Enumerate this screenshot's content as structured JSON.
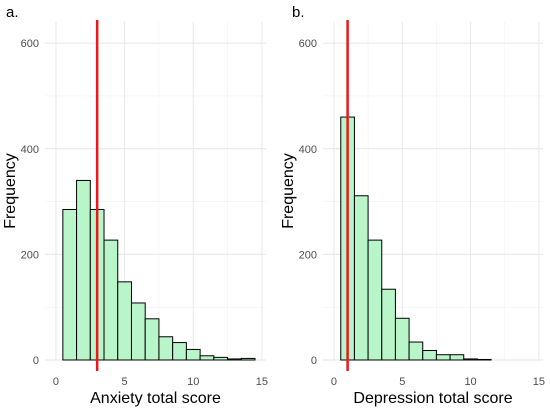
{
  "chart_data": [
    {
      "panel": "a.",
      "type": "bar",
      "xlabel": "Anxiety total score",
      "ylabel": "Frequency",
      "xlim": [
        -0.8,
        15.3
      ],
      "ylim": [
        0,
        640
      ],
      "xticks": [
        "0",
        "5",
        "10",
        "15"
      ],
      "yticks": [
        "0",
        "200",
        "400",
        "600"
      ],
      "bin_width": 1,
      "bins": [
        {
          "center": 1,
          "value": 285
        },
        {
          "center": 2,
          "value": 340
        },
        {
          "center": 3,
          "value": 285
        },
        {
          "center": 4,
          "value": 227
        },
        {
          "center": 5,
          "value": 148
        },
        {
          "center": 6,
          "value": 108
        },
        {
          "center": 7,
          "value": 78
        },
        {
          "center": 8,
          "value": 44
        },
        {
          "center": 9,
          "value": 33
        },
        {
          "center": 10,
          "value": 20
        },
        {
          "center": 11,
          "value": 8
        },
        {
          "center": 12,
          "value": 5
        },
        {
          "center": 13,
          "value": 2
        },
        {
          "center": 14,
          "value": 3
        }
      ],
      "reference_line": {
        "x": 3,
        "color": "#e8191b"
      },
      "bar_color": "#b8f5c8",
      "grid": true
    },
    {
      "panel": "b.",
      "type": "bar",
      "xlabel": "Depression total score",
      "ylabel": "Frequency",
      "xlim": [
        -0.8,
        15.3
      ],
      "ylim": [
        0,
        640
      ],
      "xticks": [
        "0",
        "5",
        "10",
        "15"
      ],
      "yticks": [
        "0",
        "200",
        "400",
        "600"
      ],
      "bin_width": 1,
      "bins": [
        {
          "center": 1,
          "value": 460
        },
        {
          "center": 2,
          "value": 311
        },
        {
          "center": 3,
          "value": 227
        },
        {
          "center": 4,
          "value": 134
        },
        {
          "center": 5,
          "value": 79
        },
        {
          "center": 6,
          "value": 34
        },
        {
          "center": 7,
          "value": 18
        },
        {
          "center": 8,
          "value": 10
        },
        {
          "center": 9,
          "value": 10
        },
        {
          "center": 10,
          "value": 2
        },
        {
          "center": 11,
          "value": 1
        },
        {
          "center": 12,
          "value": 0
        },
        {
          "center": 13,
          "value": 0
        },
        {
          "center": 14,
          "value": 0
        }
      ],
      "reference_line": {
        "x": 1,
        "color": "#e8191b"
      },
      "bar_color": "#b8f5c8",
      "grid": true
    }
  ]
}
